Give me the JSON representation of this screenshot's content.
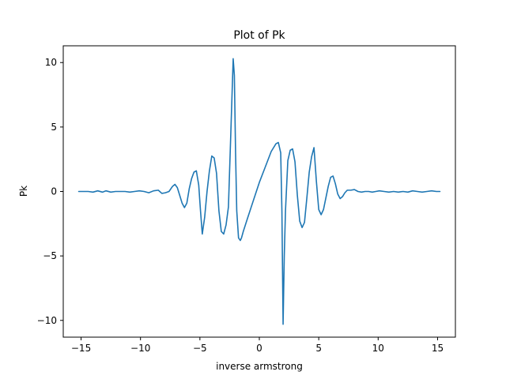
{
  "chart_data": {
    "type": "line",
    "title": "Plot of Pk",
    "xlabel": "inverse armstrong",
    "ylabel": "Pk",
    "xlim": [
      -16.5,
      16.5
    ],
    "ylim": [
      -11.3,
      11.3
    ],
    "xticks": [
      -15,
      -10,
      -5,
      0,
      5,
      10,
      15
    ],
    "yticks": [
      -10,
      -5,
      0,
      5,
      10
    ],
    "grid": false,
    "series": [
      {
        "color": "#1f77b4",
        "x": [
          -15.2,
          -14.4,
          -14.0,
          -13.6,
          -13.2,
          -12.9,
          -12.5,
          -12.1,
          -11.7,
          -11.3,
          -10.9,
          -10.5,
          -10.1,
          -9.7,
          -9.3,
          -8.9,
          -8.5,
          -8.2,
          -7.9,
          -7.6,
          -7.3,
          -7.1,
          -6.9,
          -6.7,
          -6.5,
          -6.3,
          -6.1,
          -5.9,
          -5.7,
          -5.5,
          -5.3,
          -5.1,
          -4.95,
          -4.8,
          -4.6,
          -4.4,
          -4.2,
          -4.0,
          -3.8,
          -3.6,
          -3.4,
          -3.2,
          -3.0,
          -2.8,
          -2.6,
          -2.4,
          -2.2,
          -2.1,
          -2.0,
          -1.9,
          -1.75,
          -1.6,
          -1.5,
          -1.35,
          -1.0,
          -0.5,
          0.0,
          0.5,
          1.0,
          1.4,
          1.6,
          1.8,
          1.9,
          2.0,
          2.1,
          2.2,
          2.4,
          2.6,
          2.8,
          3.0,
          3.2,
          3.4,
          3.6,
          3.8,
          4.0,
          4.2,
          4.4,
          4.6,
          4.8,
          5.0,
          5.2,
          5.4,
          5.6,
          5.8,
          6.0,
          6.2,
          6.4,
          6.6,
          6.8,
          7.0,
          7.2,
          7.4,
          7.7,
          8.0,
          8.3,
          8.6,
          8.9,
          9.2,
          9.5,
          9.8,
          10.1,
          10.5,
          10.9,
          11.3,
          11.7,
          12.1,
          12.5,
          12.9,
          13.3,
          13.7,
          14.1,
          14.5,
          14.9,
          15.2
        ],
        "y": [
          0.0,
          0.0,
          -0.05,
          0.05,
          -0.05,
          0.05,
          -0.05,
          0.0,
          0.0,
          0.0,
          -0.05,
          0.0,
          0.05,
          0.0,
          -0.1,
          0.05,
          0.1,
          -0.15,
          -0.1,
          0.0,
          0.4,
          0.55,
          0.3,
          -0.3,
          -0.9,
          -1.25,
          -0.9,
          0.2,
          1.0,
          1.5,
          1.6,
          0.5,
          -1.5,
          -3.3,
          -2.0,
          0.0,
          1.6,
          2.75,
          2.6,
          1.4,
          -1.5,
          -3.1,
          -3.3,
          -2.6,
          -1.2,
          4.5,
          10.3,
          9.0,
          3.0,
          -1.5,
          -3.6,
          -3.8,
          -3.6,
          -3.1,
          -2.1,
          -0.7,
          0.7,
          1.9,
          3.1,
          3.7,
          3.8,
          3.0,
          -1.5,
          -10.3,
          -5.0,
          -1.5,
          2.4,
          3.2,
          3.3,
          2.3,
          -0.3,
          -2.3,
          -2.8,
          -2.4,
          -0.5,
          1.5,
          2.7,
          3.4,
          0.8,
          -1.4,
          -1.8,
          -1.4,
          -0.5,
          0.4,
          1.1,
          1.2,
          0.6,
          -0.2,
          -0.55,
          -0.4,
          -0.1,
          0.1,
          0.1,
          0.15,
          0.0,
          -0.05,
          0.0,
          0.0,
          -0.05,
          0.0,
          0.05,
          0.0,
          -0.05,
          0.0,
          -0.05,
          0.0,
          -0.05,
          0.05,
          0.0,
          -0.05,
          0.0,
          0.05,
          0.0,
          0.0
        ]
      }
    ]
  }
}
